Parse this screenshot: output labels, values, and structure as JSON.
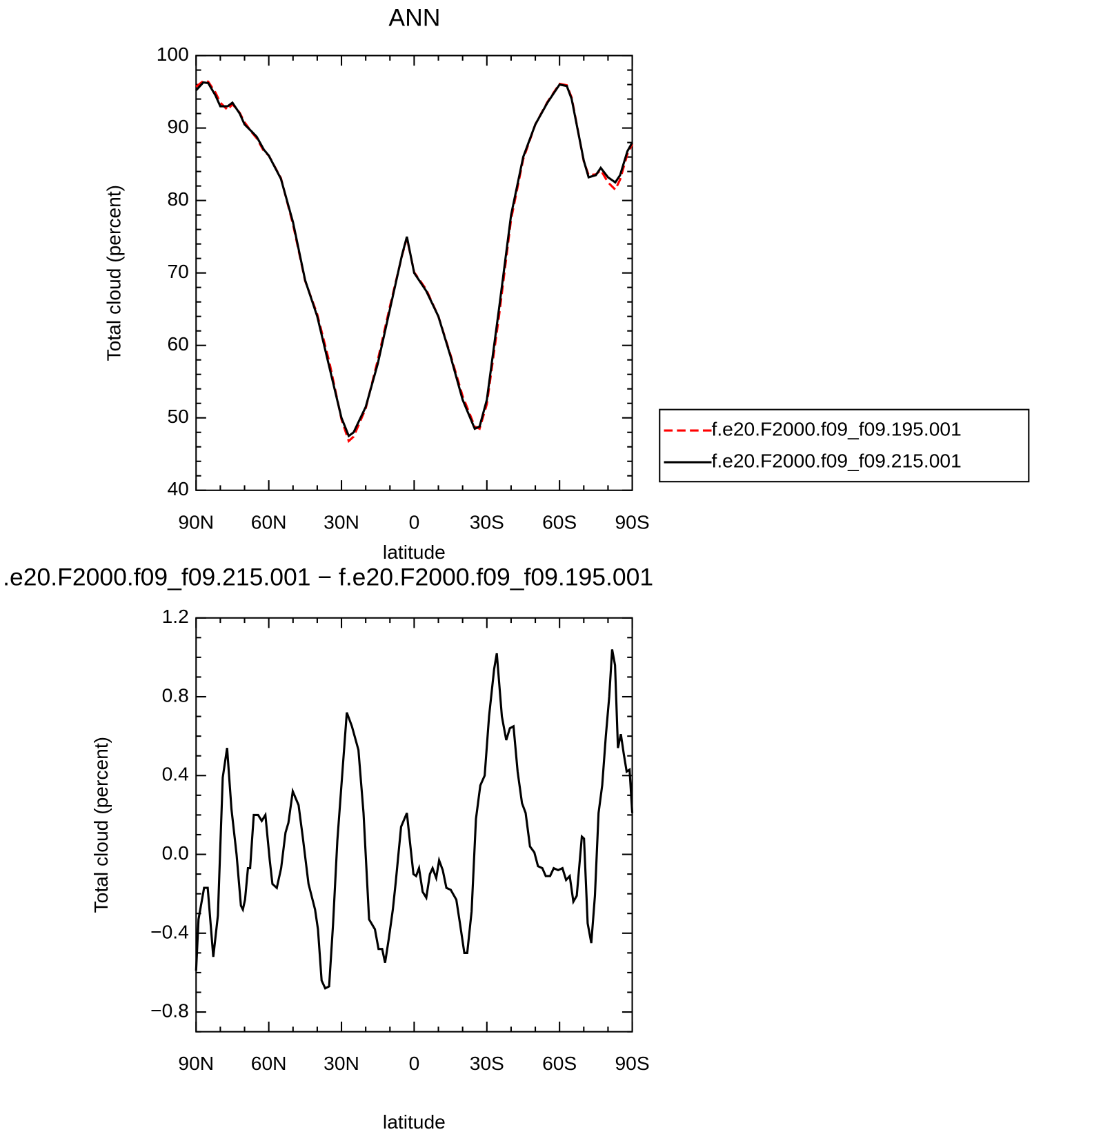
{
  "chart_data": [
    {
      "type": "line",
      "title": "ANN",
      "xlabel": "latitude",
      "ylabel": "Total cloud (percent)",
      "x": [
        90,
        87,
        85,
        82,
        80,
        77,
        75,
        72,
        70,
        67,
        65,
        62,
        60,
        55,
        50,
        45,
        40,
        35,
        30,
        27,
        25,
        20,
        15,
        10,
        5,
        3,
        0,
        -5,
        -10,
        -15,
        -20,
        -25,
        -27,
        -30,
        -35,
        -40,
        -45,
        -50,
        -55,
        -60,
        -63,
        -65,
        -70,
        -72,
        -75,
        -77,
        -80,
        -83,
        -85,
        -88,
        -90
      ],
      "series": [
        {
          "name": "f.e20.F2000.f09_f09.195.001",
          "color": "#ff0000",
          "dash": "dashed",
          "values": [
            95.7,
            96.5,
            96.4,
            94.9,
            93.5,
            92.5,
            93.3,
            92.1,
            90.8,
            89.4,
            88.6,
            86.8,
            86.2,
            83.1,
            76.7,
            68.9,
            64.3,
            57.7,
            49.8,
            46.8,
            47.4,
            51.3,
            58.0,
            65.4,
            72.4,
            74.8,
            70.1,
            67.7,
            64.0,
            58.7,
            53.0,
            48.8,
            48.5,
            51.9,
            64.0,
            77.4,
            85.7,
            90.5,
            93.6,
            96.1,
            95.9,
            94.2,
            85.4,
            83.5,
            83.6,
            84.2,
            82.5,
            81.5,
            82.9,
            86.4,
            87.8
          ]
        },
        {
          "name": "f.e20.F2000.f09_f09.215.001",
          "color": "#000000",
          "dash": "solid",
          "values": [
            95.2,
            96.3,
            96.2,
            94.5,
            93.0,
            93.0,
            93.5,
            92.0,
            90.5,
            89.5,
            88.8,
            87.0,
            86.2,
            83.0,
            77.0,
            69.0,
            64.0,
            57.0,
            50.0,
            47.5,
            48.0,
            51.5,
            57.5,
            65.0,
            72.5,
            75.0,
            70.0,
            67.5,
            64.0,
            58.5,
            52.5,
            48.5,
            48.8,
            52.5,
            65.0,
            78.0,
            86.0,
            90.5,
            93.5,
            96.0,
            95.8,
            94.0,
            85.5,
            83.2,
            83.5,
            84.5,
            83.2,
            82.5,
            83.5,
            86.8,
            88.0
          ]
        }
      ],
      "xlim": [
        90,
        -90
      ],
      "xticks": [
        {
          "value": 90,
          "label": "90N"
        },
        {
          "value": 60,
          "label": "60N"
        },
        {
          "value": 30,
          "label": "30N"
        },
        0,
        {
          "value": -30,
          "label": "30S"
        },
        {
          "value": -60,
          "label": "60S"
        },
        {
          "value": -90,
          "label": "90S"
        }
      ],
      "ylim": [
        40,
        100
      ],
      "yticks": [
        40,
        50,
        60,
        70,
        80,
        90,
        100
      ],
      "legend": "right"
    },
    {
      "type": "line",
      "title": ".e20.F2000.f09_f09.215.001 − f.e20.F2000.f09_f09.195.001",
      "xlabel": "latitude",
      "ylabel": "Total cloud (percent)",
      "x": [
        90,
        89,
        86.7,
        85.2,
        82.9,
        81,
        79,
        77.2,
        75.4,
        73.3,
        71.5,
        70.7,
        69.8,
        68.6,
        67.7,
        66.2,
        64.4,
        62.9,
        61.4,
        59.6,
        58.5,
        56.7,
        54.9,
        53.1,
        51.9,
        50.1,
        47.7,
        46,
        43.6,
        40.9,
        39.7,
        38.2,
        36.7,
        35.1,
        33.5,
        31.7,
        29.6,
        27.8,
        25.7,
        23,
        20.9,
        18.6,
        16.2,
        14.7,
        13.2,
        12,
        10.5,
        8.8,
        7.6,
        5.4,
        3,
        1.8,
        0.3,
        -0.8,
        -2,
        -3.5,
        -5,
        -6.5,
        -7.6,
        -9.1,
        -10.3,
        -11.8,
        -13.3,
        -15.1,
        -17.4,
        -18.9,
        -20.7,
        -21.9,
        -23.7,
        -25.5,
        -27.3,
        -29.1,
        -30.9,
        -33,
        -34.1,
        -36.2,
        -38,
        -39.5,
        -41,
        -42.7,
        -44.5,
        -46,
        -47.8,
        -49.6,
        -51.1,
        -52.9,
        -54.3,
        -56.1,
        -57.6,
        -59.4,
        -61.2,
        -62.7,
        -64.2,
        -65.7,
        -67.1,
        -69.2,
        -70.1,
        -71.6,
        -73.1,
        -74.6,
        -76.1,
        -77.6,
        -79.1,
        -80.5,
        -81.7,
        -82.9,
        -84.1,
        -85.3,
        -86.5,
        -87.7,
        -88.9,
        -90
      ],
      "series": [
        {
          "color": "#000000",
          "dash": "solid",
          "values": [
            -0.59,
            -0.33,
            -0.17,
            -0.17,
            -0.52,
            -0.31,
            0.39,
            0.54,
            0.23,
            0.0,
            -0.26,
            -0.28,
            -0.23,
            -0.07,
            -0.07,
            0.2,
            0.2,
            0.17,
            0.2,
            -0.03,
            -0.15,
            -0.17,
            -0.07,
            0.11,
            0.16,
            0.32,
            0.25,
            0.09,
            -0.15,
            -0.28,
            -0.38,
            -0.64,
            -0.68,
            -0.67,
            -0.36,
            0.07,
            0.42,
            0.72,
            0.65,
            0.53,
            0.21,
            -0.33,
            -0.38,
            -0.48,
            -0.48,
            -0.55,
            -0.43,
            -0.28,
            -0.14,
            0.14,
            0.21,
            0.07,
            -0.1,
            -0.11,
            -0.07,
            -0.19,
            -0.22,
            -0.1,
            -0.07,
            -0.12,
            -0.03,
            -0.08,
            -0.17,
            -0.18,
            -0.23,
            -0.35,
            -0.5,
            -0.5,
            -0.29,
            0.18,
            0.35,
            0.4,
            0.7,
            0.94,
            1.02,
            0.7,
            0.58,
            0.64,
            0.65,
            0.42,
            0.26,
            0.21,
            0.04,
            0.01,
            -0.06,
            -0.07,
            -0.11,
            -0.11,
            -0.07,
            -0.08,
            -0.07,
            -0.13,
            -0.11,
            -0.24,
            -0.21,
            0.09,
            0.08,
            -0.35,
            -0.45,
            -0.21,
            0.21,
            0.35,
            0.6,
            0.8,
            1.04,
            0.96,
            0.54,
            0.61,
            0.51,
            0.42,
            0.43,
            0.21
          ]
        }
      ],
      "xlim": [
        90,
        -90
      ],
      "xticks": [
        {
          "value": 90,
          "label": "90N"
        },
        {
          "value": 60,
          "label": "60N"
        },
        {
          "value": 30,
          "label": "30N"
        },
        0,
        {
          "value": -30,
          "label": "30S"
        },
        {
          "value": -60,
          "label": "60S"
        },
        {
          "value": -90,
          "label": "90S"
        }
      ],
      "ylim": [
        -0.9,
        1.2
      ],
      "yticks": [
        {
          "value": -0.8,
          "label": "−0.8"
        },
        {
          "value": -0.4,
          "label": "−0.4"
        },
        {
          "value": 0,
          "label": "0.0"
        },
        0.4,
        0.8,
        1.2
      ]
    }
  ]
}
